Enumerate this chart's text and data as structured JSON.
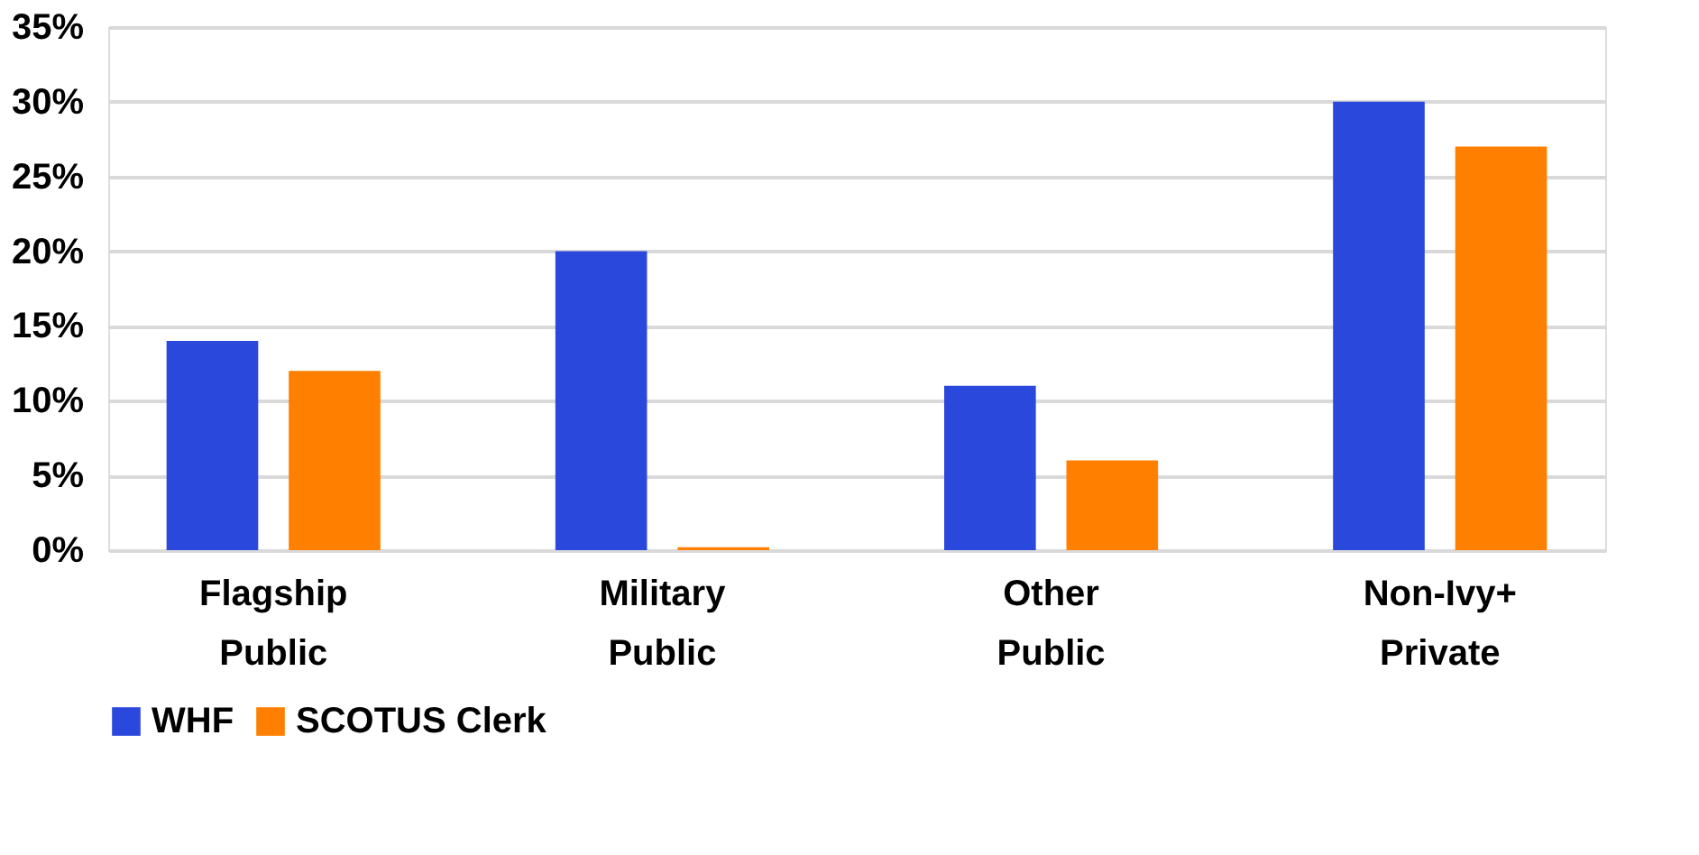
{
  "chart_data": {
    "type": "bar",
    "categories": [
      "Flagship Public",
      "Military Public",
      "Other Public",
      "Non-Ivy+ Private"
    ],
    "series": [
      {
        "name": "WHF",
        "color": "#2b48dd",
        "values": [
          14,
          20,
          11,
          30
        ]
      },
      {
        "name": "SCOTUS Clerk",
        "color": "#ff8000",
        "values": [
          12,
          0.2,
          6,
          27
        ]
      }
    ],
    "ylim": [
      0,
      35
    ],
    "yticks": [
      {
        "value": 0,
        "label": "0%"
      },
      {
        "value": 5,
        "label": "5%"
      },
      {
        "value": 10,
        "label": "10%"
      },
      {
        "value": 15,
        "label": "15%"
      },
      {
        "value": 20,
        "label": "20%"
      },
      {
        "value": 25,
        "label": "25%"
      },
      {
        "value": 30,
        "label": "30%"
      },
      {
        "value": 35,
        "label": "35%"
      }
    ],
    "grid": "y",
    "legend": "bottom"
  }
}
